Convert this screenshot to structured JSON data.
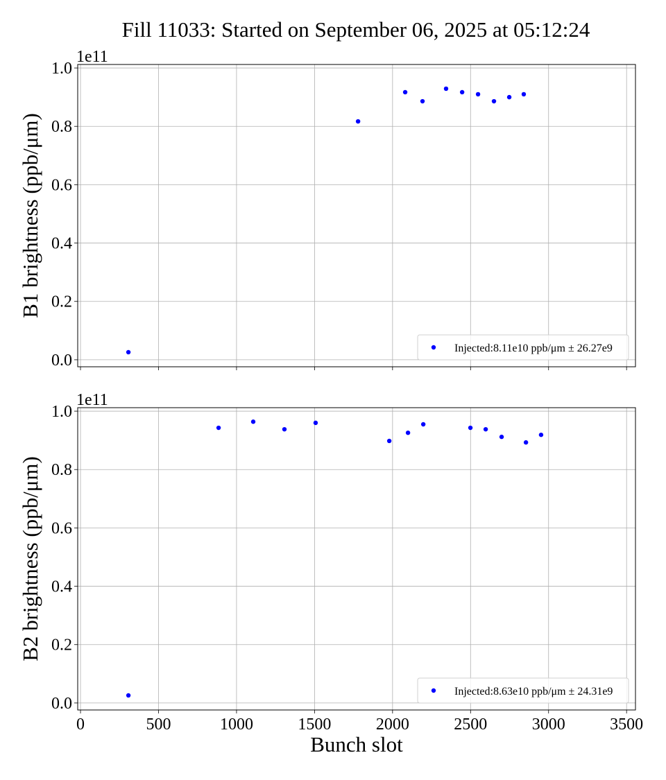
{
  "title": "Fill 11033: Started on September 06, 2025 at 05:12:24",
  "chart_data": [
    {
      "type": "scatter",
      "ylabel": "B1 brightness (ppb/μm)",
      "xlabel": "",
      "offset_label": "1e11",
      "xlim": [
        -18,
        3557
      ],
      "ylim": [
        -0.024,
        1.012
      ],
      "xticks": [
        0,
        500,
        1000,
        1500,
        2000,
        2500,
        3000,
        3500
      ],
      "yticks": [
        0.0,
        0.2,
        0.4,
        0.6,
        0.8,
        1.0
      ],
      "ytick_labels": [
        "0.0",
        "0.2",
        "0.4",
        "0.6",
        "0.8",
        "1.0"
      ],
      "show_xtick_labels": false,
      "grid": true,
      "legend_placement": "lower-right",
      "color": "#0000ff",
      "series": [
        {
          "name": "Injected:8.11e10 ppb/μm ± 26.27e9",
          "x": [
            307,
            1779,
            2081,
            2192,
            2343,
            2446,
            2548,
            2650,
            2748,
            2841
          ],
          "y": [
            0.026,
            0.817,
            0.917,
            0.886,
            0.929,
            0.917,
            0.91,
            0.886,
            0.9,
            0.91
          ]
        }
      ]
    },
    {
      "type": "scatter",
      "ylabel": "B2 brightness (ppb/μm)",
      "xlabel": "Bunch slot",
      "offset_label": "1e11",
      "xlim": [
        -18,
        3557
      ],
      "ylim": [
        -0.024,
        1.012
      ],
      "xticks": [
        0,
        500,
        1000,
        1500,
        2000,
        2500,
        3000,
        3500
      ],
      "yticks": [
        0.0,
        0.2,
        0.4,
        0.6,
        0.8,
        1.0
      ],
      "ytick_labels": [
        "0.0",
        "0.2",
        "0.4",
        "0.6",
        "0.8",
        "1.0"
      ],
      "show_xtick_labels": true,
      "grid": true,
      "legend_placement": "lower-right",
      "color": "#0000ff",
      "series": [
        {
          "name": "Injected:8.63e10 ppb/μm ± 24.31e9",
          "x": [
            307,
            885,
            1107,
            1307,
            1507,
            1979,
            2099,
            2197,
            2499,
            2597,
            2699,
            2855,
            2952
          ],
          "y": [
            0.026,
            0.943,
            0.964,
            0.938,
            0.96,
            0.898,
            0.926,
            0.955,
            0.943,
            0.938,
            0.912,
            0.893,
            0.919
          ]
        }
      ]
    }
  ]
}
